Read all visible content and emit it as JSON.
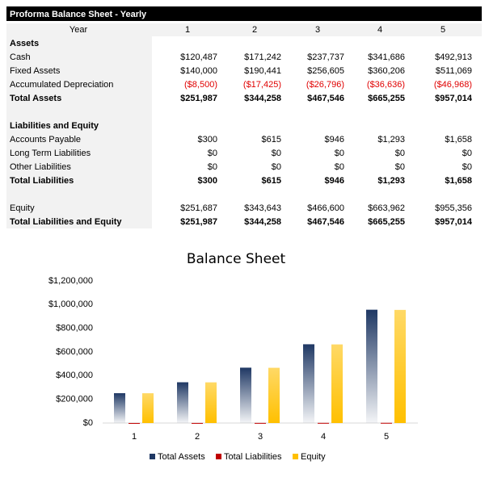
{
  "table": {
    "title": "Proforma Balance Sheet - Yearly",
    "header": [
      "Year",
      "1",
      "2",
      "3",
      "4",
      "5"
    ],
    "rows": [
      [
        "Assets"
      ],
      [
        "Cash",
        "$120,487",
        "$171,242",
        "$237,737",
        "$341,686",
        "$492,913"
      ],
      [
        "Fixed Assets",
        "$140,000",
        "$190,441",
        "$256,605",
        "$360,206",
        "$511,069"
      ],
      [
        "Accumulated Depreciation",
        "($8,500)",
        "($17,425)",
        "($26,796)",
        "($36,636)",
        "($46,968)"
      ],
      [
        "Total Assets",
        "$251,987",
        "$344,258",
        "$467,546",
        "$665,255",
        "$957,014"
      ],
      [
        "Liabilities and Equity"
      ],
      [
        "Accounts Payable",
        "$300",
        "$615",
        "$946",
        "$1,293",
        "$1,658"
      ],
      [
        "Long Term Liabilities",
        "$0",
        "$0",
        "$0",
        "$0",
        "$0"
      ],
      [
        "Other Liabilities",
        "$0",
        "$0",
        "$0",
        "$0",
        "$0"
      ],
      [
        "Total Liabilities",
        "$300",
        "$615",
        "$946",
        "$1,293",
        "$1,658"
      ],
      [
        "Equity",
        "$251,687",
        "$343,643",
        "$466,600",
        "$663,962",
        "$955,356"
      ],
      [
        "Total Liabilities and Equity",
        "$251,987",
        "$344,258",
        "$467,546",
        "$665,255",
        "$957,014"
      ]
    ]
  },
  "chart_data": {
    "type": "bar",
    "title": "Balance Sheet",
    "categories": [
      "1",
      "2",
      "3",
      "4",
      "5"
    ],
    "series": [
      {
        "name": "Total Assets",
        "color": "#1f3864",
        "values": [
          251987,
          344258,
          467546,
          665255,
          957014
        ]
      },
      {
        "name": "Total Liabilities",
        "color": "#c00000",
        "values": [
          300,
          615,
          946,
          1293,
          1658
        ]
      },
      {
        "name": "Equity",
        "color": "#ffc000",
        "values": [
          251687,
          343643,
          466600,
          663962,
          955356
        ]
      }
    ],
    "ylim": [
      0,
      1200000
    ],
    "yticks": [
      {
        "value": 0,
        "label": "$0"
      },
      {
        "value": 200000,
        "label": "$200,000"
      },
      {
        "value": 400000,
        "label": "$400,000"
      },
      {
        "value": 600000,
        "label": "$600,000"
      },
      {
        "value": 800000,
        "label": "$800,000"
      },
      {
        "value": 1000000,
        "label": "$1,000,000"
      },
      {
        "value": 1200000,
        "label": "$1,200,000"
      }
    ],
    "legend": "bottom"
  }
}
